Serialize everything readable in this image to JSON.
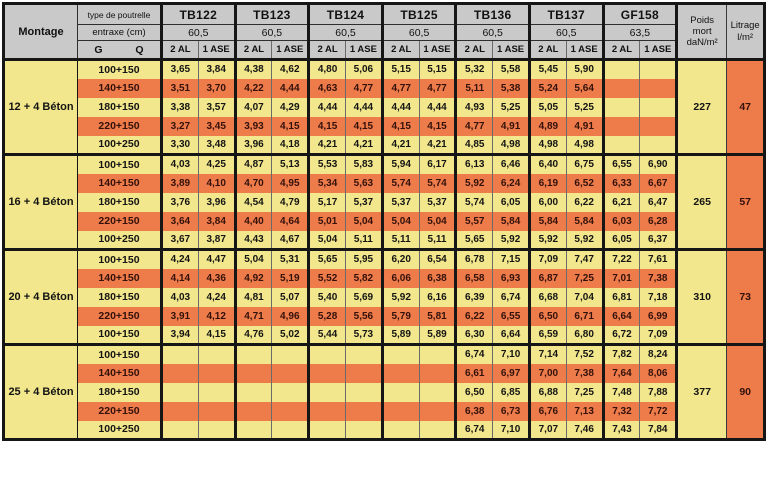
{
  "table": {
    "corner": {
      "montage": "Montage",
      "type_label": "type de poutrelle",
      "entraxe_label": "entraxe (cm)",
      "g": "G",
      "q": "Q"
    },
    "columns": [
      {
        "name": "TB122",
        "entraxe": "60,5"
      },
      {
        "name": "TB123",
        "entraxe": "60,5"
      },
      {
        "name": "TB124",
        "entraxe": "60,5"
      },
      {
        "name": "TB125",
        "entraxe": "60,5"
      },
      {
        "name": "TB136",
        "entraxe": "60,5"
      },
      {
        "name": "TB137",
        "entraxe": "60,5"
      },
      {
        "name": "GF158",
        "entraxe": "63,5"
      }
    ],
    "subcols": [
      "2 AL",
      "1 ASE"
    ],
    "poids_header": {
      "l1": "Poids",
      "l2": "mort",
      "l3": "daN/m²"
    },
    "litrage_header": {
      "l1": "Litrage",
      "l2": "l/m²"
    },
    "blocks": [
      {
        "montage": "12 + 4 Béton",
        "poids": "227",
        "litrage": "47",
        "rows": [
          {
            "gq": "100+150",
            "highlight": false,
            "values": [
              "3,65",
              "3,84",
              "4,38",
              "4,62",
              "4,80",
              "5,06",
              "5,15",
              "5,15",
              "5,32",
              "5,58",
              "5,45",
              "5,90",
              "",
              ""
            ]
          },
          {
            "gq": "140+150",
            "highlight": true,
            "values": [
              "3,51",
              "3,70",
              "4,22",
              "4,44",
              "4,63",
              "4,77",
              "4,77",
              "4,77",
              "5,11",
              "5,38",
              "5,24",
              "5,64",
              "",
              ""
            ]
          },
          {
            "gq": "180+150",
            "highlight": false,
            "values": [
              "3,38",
              "3,57",
              "4,07",
              "4,29",
              "4,44",
              "4,44",
              "4,44",
              "4,44",
              "4,93",
              "5,25",
              "5,05",
              "5,25",
              "",
              ""
            ]
          },
          {
            "gq": "220+150",
            "highlight": true,
            "values": [
              "3,27",
              "3,45",
              "3,93",
              "4,15",
              "4,15",
              "4,15",
              "4,15",
              "4,15",
              "4,77",
              "4,91",
              "4,89",
              "4,91",
              "",
              ""
            ]
          },
          {
            "gq": "100+250",
            "highlight": false,
            "values": [
              "3,30",
              "3,48",
              "3,96",
              "4,18",
              "4,21",
              "4,21",
              "4,21",
              "4,21",
              "4,85",
              "4,98",
              "4,98",
              "4,98",
              "",
              ""
            ]
          }
        ]
      },
      {
        "montage": "16 + 4 Béton",
        "poids": "265",
        "litrage": "57",
        "rows": [
          {
            "gq": "100+150",
            "highlight": false,
            "values": [
              "4,03",
              "4,25",
              "4,87",
              "5,13",
              "5,53",
              "5,83",
              "5,94",
              "6,17",
              "6,13",
              "6,46",
              "6,40",
              "6,75",
              "6,55",
              "6,90"
            ]
          },
          {
            "gq": "140+150",
            "highlight": true,
            "values": [
              "3,89",
              "4,10",
              "4,70",
              "4,95",
              "5,34",
              "5,63",
              "5,74",
              "5,74",
              "5,92",
              "6,24",
              "6,19",
              "6,52",
              "6,33",
              "6,67"
            ]
          },
          {
            "gq": "180+150",
            "highlight": false,
            "values": [
              "3,76",
              "3,96",
              "4,54",
              "4,79",
              "5,17",
              "5,37",
              "5,37",
              "5,37",
              "5,74",
              "6,05",
              "6,00",
              "6,22",
              "6,21",
              "6,47"
            ]
          },
          {
            "gq": "220+150",
            "highlight": true,
            "values": [
              "3,64",
              "3,84",
              "4,40",
              "4,64",
              "5,01",
              "5,04",
              "5,04",
              "5,04",
              "5,57",
              "5,84",
              "5,84",
              "5,84",
              "6,03",
              "6,28"
            ]
          },
          {
            "gq": "100+250",
            "highlight": false,
            "values": [
              "3,67",
              "3,87",
              "4,43",
              "4,67",
              "5,04",
              "5,11",
              "5,11",
              "5,11",
              "5,65",
              "5,92",
              "5,92",
              "5,92",
              "6,05",
              "6,37"
            ]
          }
        ]
      },
      {
        "montage": "20 + 4 Béton",
        "poids": "310",
        "litrage": "73",
        "rows": [
          {
            "gq": "100+150",
            "highlight": false,
            "values": [
              "4,24",
              "4,47",
              "5,04",
              "5,31",
              "5,65",
              "5,95",
              "6,20",
              "6,54",
              "6,78",
              "7,15",
              "7,09",
              "7,47",
              "7,22",
              "7,61"
            ]
          },
          {
            "gq": "140+150",
            "highlight": true,
            "values": [
              "4,14",
              "4,36",
              "4,92",
              "5,19",
              "5,52",
              "5,82",
              "6,06",
              "6,38",
              "6,58",
              "6,93",
              "6,87",
              "7,25",
              "7,01",
              "7,38"
            ]
          },
          {
            "gq": "180+150",
            "highlight": false,
            "values": [
              "4,03",
              "4,24",
              "4,81",
              "5,07",
              "5,40",
              "5,69",
              "5,92",
              "6,16",
              "6,39",
              "6,74",
              "6,68",
              "7,04",
              "6,81",
              "7,18"
            ]
          },
          {
            "gq": "220+150",
            "highlight": true,
            "values": [
              "3,91",
              "4,12",
              "4,71",
              "4,96",
              "5,28",
              "5,56",
              "5,79",
              "5,81",
              "6,22",
              "6,55",
              "6,50",
              "6,71",
              "6,64",
              "6,99"
            ]
          },
          {
            "gq": "100+150",
            "highlight": false,
            "values": [
              "3,94",
              "4,15",
              "4,76",
              "5,02",
              "5,44",
              "5,73",
              "5,89",
              "5,89",
              "6,30",
              "6,64",
              "6,59",
              "6,80",
              "6,72",
              "7,09"
            ]
          }
        ]
      },
      {
        "montage": "25 + 4 Béton",
        "poids": "377",
        "litrage": "90",
        "rows": [
          {
            "gq": "100+150",
            "highlight": false,
            "values": [
              "",
              "",
              "",
              "",
              "",
              "",
              "",
              "",
              "6,74",
              "7,10",
              "7,14",
              "7,52",
              "7,82",
              "8,24"
            ]
          },
          {
            "gq": "140+150",
            "highlight": true,
            "values": [
              "",
              "",
              "",
              "",
              "",
              "",
              "",
              "",
              "6,61",
              "6,97",
              "7,00",
              "7,38",
              "7,64",
              "8,06"
            ]
          },
          {
            "gq": "180+150",
            "highlight": false,
            "values": [
              "",
              "",
              "",
              "",
              "",
              "",
              "",
              "",
              "6,50",
              "6,85",
              "6,88",
              "7,25",
              "7,48",
              "7,88"
            ]
          },
          {
            "gq": "220+150",
            "highlight": true,
            "values": [
              "",
              "",
              "",
              "",
              "",
              "",
              "",
              "",
              "6,38",
              "6,73",
              "6,76",
              "7,13",
              "7,32",
              "7,72"
            ]
          },
          {
            "gq": "100+250",
            "highlight": false,
            "values": [
              "",
              "",
              "",
              "",
              "",
              "",
              "",
              "",
              "6,74",
              "7,10",
              "7,07",
              "7,46",
              "7,43",
              "7,84"
            ]
          }
        ]
      }
    ],
    "colors": {
      "yellow": "#f2e78c",
      "orange": "#ee7c4b",
      "header_gray": "#c9c9c9",
      "border": "#161616"
    }
  }
}
